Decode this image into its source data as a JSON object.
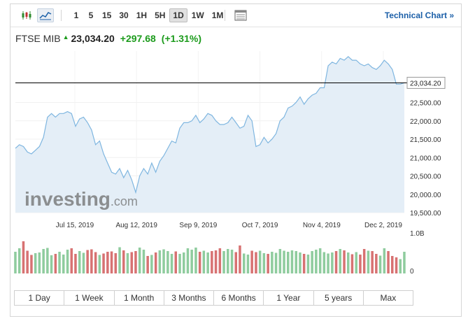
{
  "toolbar": {
    "icons": [
      "candlestick-icon",
      "area-chart-icon"
    ],
    "intervals": [
      "1",
      "5",
      "15",
      "30",
      "1H",
      "5H",
      "1D",
      "1W",
      "1M"
    ],
    "active_interval": "1D",
    "settings_icon": "table-icon",
    "technical_link": "Technical Chart »"
  },
  "quote": {
    "name": "FTSE MIB",
    "price": "23,034.20",
    "change": "+297.68",
    "change_pct": "(+1.31%)",
    "color_up": "#1c9b1c"
  },
  "watermark": {
    "brand": "investing",
    "suffix": ".com"
  },
  "ranges": [
    "1 Day",
    "1 Week",
    "1 Month",
    "3 Months",
    "6 Months",
    "1 Year",
    "5 years",
    "Max"
  ],
  "chart_data": {
    "type": "area",
    "xlabels": [
      "Jul 15, 2019",
      "Aug 12, 2019",
      "Sep 9, 2019",
      "Oct 7, 2019",
      "Nov 4, 2019",
      "Dec 2, 2019"
    ],
    "yticks": [
      "22,500.00",
      "22,000.00",
      "21,500.00",
      "21,000.00",
      "20,500.00",
      "20,000.00",
      "19,500.00"
    ],
    "ylim": [
      19500,
      23900
    ],
    "last_value_label": "23,034.20",
    "last_value": 23034.2,
    "volume_labels": [
      "1.0B",
      "0"
    ],
    "series": [
      {
        "values": [
          21250,
          21350,
          21300,
          21150,
          21100,
          21200,
          21300,
          21550,
          22100,
          22200,
          22100,
          22200,
          22200,
          22250,
          22200,
          21850,
          22050,
          22100,
          21950,
          21750,
          21350,
          21450,
          21100,
          20850,
          20600,
          20550,
          20700,
          20450,
          20650,
          20400,
          20050,
          20500,
          20700,
          20550,
          20850,
          20600,
          20900,
          21050,
          21250,
          21450,
          21400,
          21800,
          21950,
          21950,
          22000,
          22150,
          21950,
          22050,
          22200,
          22150,
          22000,
          21900,
          21900,
          21950,
          22100,
          21950,
          21800,
          21850,
          22150,
          22000,
          21300,
          21350,
          21550,
          21400,
          21500,
          21650,
          22000,
          22100,
          22350,
          22400,
          22500,
          22650,
          22450,
          22600,
          22700,
          22750,
          22900,
          22900,
          23500,
          23600,
          23550,
          23700,
          23650,
          23750,
          23650,
          23650,
          23550,
          23500,
          23550,
          23450,
          23400,
          23500,
          23650,
          23550,
          23400,
          23000,
          23000,
          23040
        ]
      }
    ],
    "volume": [
      620,
      720,
      920,
      650,
      530,
      580,
      600,
      700,
      730,
      520,
      560,
      620,
      540,
      680,
      720,
      560,
      640,
      590,
      670,
      690,
      610,
      530,
      570,
      620,
      630,
      580,
      750,
      660,
      580,
      610,
      640,
      740,
      680,
      500,
      530,
      600,
      660,
      690,
      640,
      560,
      630,
      560,
      600,
      720,
      680,
      740,
      620,
      650,
      600,
      640,
      660,
      720,
      640,
      700,
      680,
      610,
      800,
      570,
      540,
      650,
      610,
      650,
      580,
      560,
      620,
      590,
      700,
      650,
      620,
      660,
      640,
      600,
      560,
      540,
      640,
      680,
      720,
      610,
      570,
      600,
      640,
      700,
      660,
      600,
      550,
      610,
      540,
      700,
      650,
      640,
      560,
      510,
      720,
      640,
      500,
      460,
      410,
      620
    ],
    "colors": {
      "line": "#7fb6e0",
      "fill": "#e4eef7",
      "volume_up": "#8fcc9e",
      "volume_down": "#d77272",
      "ref_line": "#000000"
    }
  }
}
